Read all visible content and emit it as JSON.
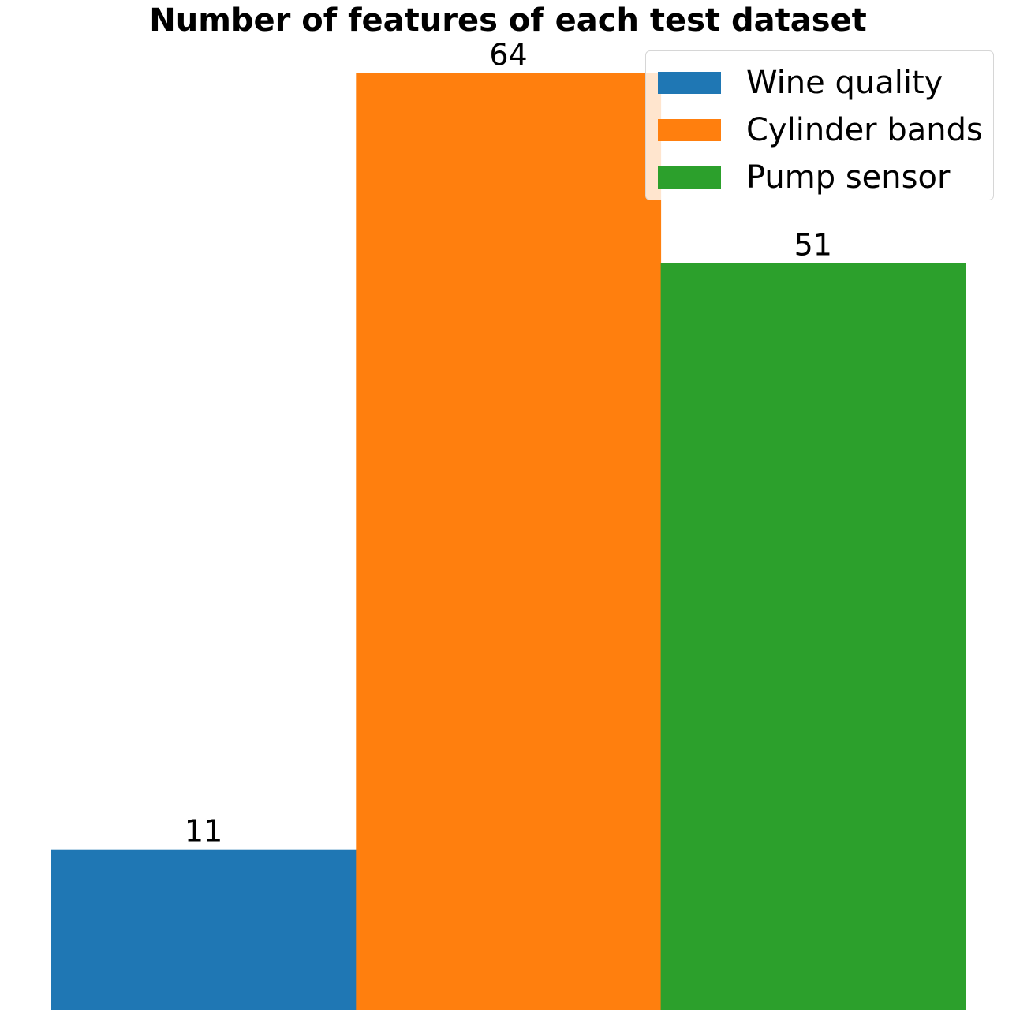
{
  "chart_data": {
    "type": "bar",
    "title": "Number of features of each test dataset",
    "xlabel": "",
    "ylabel": "",
    "ylim": [
      0,
      67.3
    ],
    "grid": false,
    "legend_position": "top-right",
    "series": [
      {
        "name": "Wine quality",
        "values": [
          11
        ],
        "color": "#1f77b4"
      },
      {
        "name": "Cylinder bands",
        "values": [
          64
        ],
        "color": "#ff7f0e"
      },
      {
        "name": "Pump sensor",
        "values": [
          51
        ],
        "color": "#2ca02c"
      }
    ],
    "data_labels": [
      "11",
      "64",
      "51"
    ]
  }
}
